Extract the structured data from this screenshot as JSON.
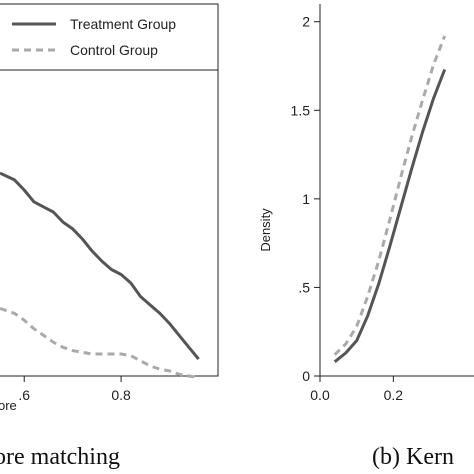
{
  "chart_data": [
    {
      "type": "line",
      "xlabel": "ore",
      "ylabel": "",
      "caption": "ore matching",
      "xlim": [
        0.55,
        1.0
      ],
      "ylim": [
        0,
        2.2
      ],
      "xticks": [
        0.6,
        0.8
      ],
      "xtick_labels": [
        ".6",
        "0.8"
      ],
      "legend_position": "top-right",
      "series": [
        {
          "name": "Treatment Group",
          "style": "solid",
          "color": "#555555",
          "x": [
            0.55,
            0.58,
            0.6,
            0.62,
            0.64,
            0.66,
            0.68,
            0.7,
            0.72,
            0.74,
            0.76,
            0.78,
            0.8,
            0.82,
            0.84,
            0.86,
            0.88,
            0.9,
            0.92,
            0.94,
            0.96
          ],
          "y": [
            1.2,
            1.16,
            1.1,
            1.03,
            1.0,
            0.97,
            0.91,
            0.87,
            0.81,
            0.74,
            0.68,
            0.63,
            0.6,
            0.55,
            0.47,
            0.42,
            0.37,
            0.31,
            0.24,
            0.17,
            0.1
          ]
        },
        {
          "name": "Control Group",
          "style": "dashed",
          "color": "#aaaaaa",
          "x": [
            0.55,
            0.58,
            0.6,
            0.62,
            0.64,
            0.66,
            0.68,
            0.7,
            0.72,
            0.74,
            0.76,
            0.78,
            0.8,
            0.82,
            0.84,
            0.86,
            0.88,
            0.9,
            0.92,
            0.94,
            0.96
          ],
          "y": [
            0.4,
            0.37,
            0.33,
            0.28,
            0.24,
            0.2,
            0.17,
            0.15,
            0.14,
            0.13,
            0.13,
            0.13,
            0.13,
            0.12,
            0.09,
            0.06,
            0.04,
            0.03,
            0.01,
            0.0,
            -0.01
          ]
        }
      ]
    },
    {
      "type": "line",
      "xlabel": "",
      "ylabel": "Density",
      "caption": "(b) Kern",
      "xlim": [
        0,
        0.42
      ],
      "ylim": [
        0,
        2.1
      ],
      "xticks": [
        0.0,
        0.2
      ],
      "xtick_labels": [
        "0.0",
        "0.2"
      ],
      "yticks": [
        0,
        0.5,
        1,
        1.5,
        2
      ],
      "ytick_labels": [
        "0",
        ".5",
        "1",
        "1.5",
        "2"
      ],
      "series": [
        {
          "name": "Treatment Group",
          "style": "solid",
          "color": "#555555",
          "x": [
            0.04,
            0.07,
            0.1,
            0.13,
            0.16,
            0.19,
            0.22,
            0.25,
            0.28,
            0.31,
            0.34
          ],
          "y": [
            0.08,
            0.13,
            0.2,
            0.34,
            0.52,
            0.73,
            0.95,
            1.17,
            1.38,
            1.57,
            1.73
          ]
        },
        {
          "name": "Control Group",
          "style": "dashed",
          "color": "#aaaaaa",
          "x": [
            0.04,
            0.07,
            0.1,
            0.13,
            0.16,
            0.19,
            0.22,
            0.25,
            0.28,
            0.31,
            0.34
          ],
          "y": [
            0.12,
            0.18,
            0.28,
            0.45,
            0.65,
            0.88,
            1.12,
            1.35,
            1.56,
            1.76,
            1.92
          ]
        }
      ]
    }
  ],
  "legend": {
    "treatment_label": "Treatment Group",
    "control_label": "Control Group"
  }
}
